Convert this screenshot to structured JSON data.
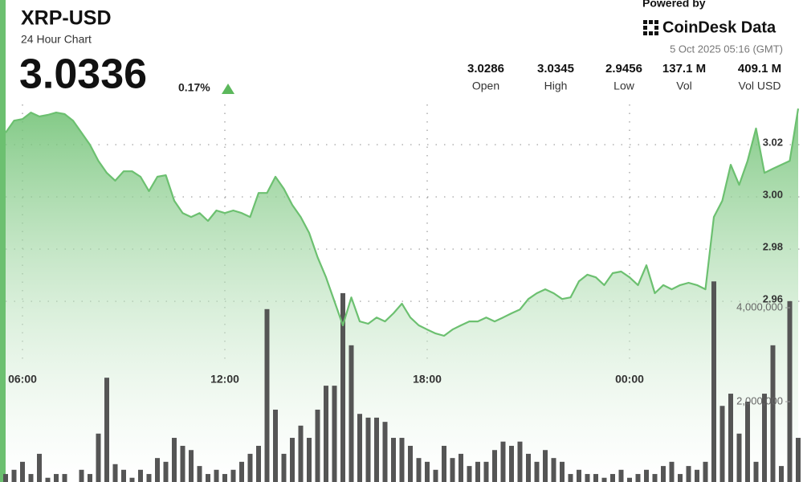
{
  "chart_data": {
    "type": "line",
    "title": "XRP-USD",
    "subtitle": "24 Hour Chart",
    "price": "3.0336",
    "change": "0.17%",
    "powered_by": "Powered by",
    "brand": "CoinDesk Data",
    "timestamp": "5 Oct 2025 05:16 (GMT)",
    "stats": [
      {
        "value": "3.0286",
        "label": "Open"
      },
      {
        "value": "3.0345",
        "label": "High"
      },
      {
        "value": "2.9456",
        "label": "Low"
      },
      {
        "value": "137.1 M",
        "label": "Vol"
      },
      {
        "value": "409.1 M",
        "label": "Vol USD"
      }
    ],
    "categories": [
      null,
      null,
      "06:00",
      null,
      null,
      null,
      null,
      null,
      null,
      null,
      null,
      null,
      null,
      null,
      null,
      null,
      null,
      null,
      null,
      null,
      null,
      null,
      null,
      null,
      null,
      null,
      "12:00",
      null,
      null,
      null,
      null,
      null,
      null,
      null,
      null,
      null,
      null,
      null,
      null,
      null,
      null,
      null,
      null,
      null,
      null,
      null,
      null,
      null,
      null,
      null,
      "18:00",
      null,
      null,
      null,
      null,
      null,
      null,
      null,
      null,
      null,
      null,
      null,
      null,
      null,
      null,
      null,
      null,
      null,
      null,
      null,
      null,
      null,
      null,
      null,
      "00:00",
      null,
      null,
      null,
      null,
      null,
      null,
      null,
      null,
      null,
      null,
      null,
      null,
      null,
      null,
      null,
      null,
      null,
      null,
      null,
      null
    ],
    "series": [
      {
        "color": "#6cc070",
        "values": [
          3.0246,
          3.0292,
          3.0298,
          3.0323,
          3.0308,
          3.0314,
          3.0323,
          3.0317,
          3.0292,
          3.0246,
          3.02,
          3.0138,
          3.0092,
          3.0062,
          3.0098,
          3.0098,
          3.0077,
          3.0022,
          3.0077,
          3.0083,
          2.9985,
          2.9938,
          2.9923,
          2.9938,
          2.9908,
          2.9948,
          2.9938,
          2.9948,
          2.9938,
          2.9923,
          3.0015,
          3.0015,
          3.0077,
          3.0031,
          2.9969,
          2.9923,
          2.9862,
          2.9769,
          2.9692,
          2.96,
          2.9508,
          2.9615,
          2.9523,
          2.9514,
          2.9538,
          2.9523,
          2.9554,
          2.9591,
          2.9538,
          2.9508,
          2.9492,
          2.9477,
          2.9468,
          2.9492,
          2.9508,
          2.9523,
          2.9523,
          2.9538,
          2.9523,
          2.9538,
          2.9554,
          2.9569,
          2.9609,
          2.9631,
          2.9646,
          2.9631,
          2.9609,
          2.9615,
          2.9677,
          2.9702,
          2.9692,
          2.9662,
          2.9708,
          2.9714,
          2.9692,
          2.9662,
          2.9738,
          2.9631,
          2.9662,
          2.9646,
          2.9662,
          2.9671,
          2.9662,
          2.9646,
          2.9923,
          2.9985,
          3.0123,
          3.0046,
          3.0138,
          3.0262,
          3.0092,
          3.0108,
          3.0123,
          3.0138,
          3.0338
        ]
      },
      {
        "color": "#555555",
        "axis": "y2",
        "values": [
          460000,
          550000,
          720000,
          460000,
          890000,
          380000,
          460000,
          460000,
          290000,
          550000,
          460000,
          1320000,
          2510000,
          670000,
          550000,
          380000,
          550000,
          460000,
          800000,
          720000,
          1230000,
          1060000,
          970000,
          630000,
          460000,
          550000,
          460000,
          550000,
          720000,
          890000,
          1060000,
          3970000,
          1830000,
          890000,
          1230000,
          1490000,
          1230000,
          1830000,
          2340000,
          2340000,
          4310000,
          3200000,
          1740000,
          1660000,
          1660000,
          1570000,
          1230000,
          1230000,
          1060000,
          800000,
          720000,
          550000,
          1060000,
          800000,
          890000,
          630000,
          720000,
          720000,
          970000,
          1150000,
          1060000,
          1150000,
          890000,
          720000,
          970000,
          800000,
          720000,
          460000,
          550000,
          460000,
          460000,
          380000,
          460000,
          550000,
          380000,
          460000,
          550000,
          460000,
          630000,
          720000,
          460000,
          630000,
          550000,
          720000,
          4560000,
          1910000,
          2170000,
          1320000,
          2000000,
          720000,
          2170000,
          3200000,
          630000,
          4140000,
          1230000
        ]
      }
    ],
    "ylim": [
      2.8908,
      3.0754
    ],
    "yticks": [
      2.96,
      2.98,
      {
        "value": 3.0,
        "label": "3.00"
      },
      3.02
    ],
    "y2lim": [
      290000,
      10550000
    ],
    "y2ticks": [
      {
        "value": 2000000,
        "label": "2,000,000"
      },
      {
        "value": 4000000,
        "label": "4,000,000"
      }
    ],
    "grid": true
  }
}
